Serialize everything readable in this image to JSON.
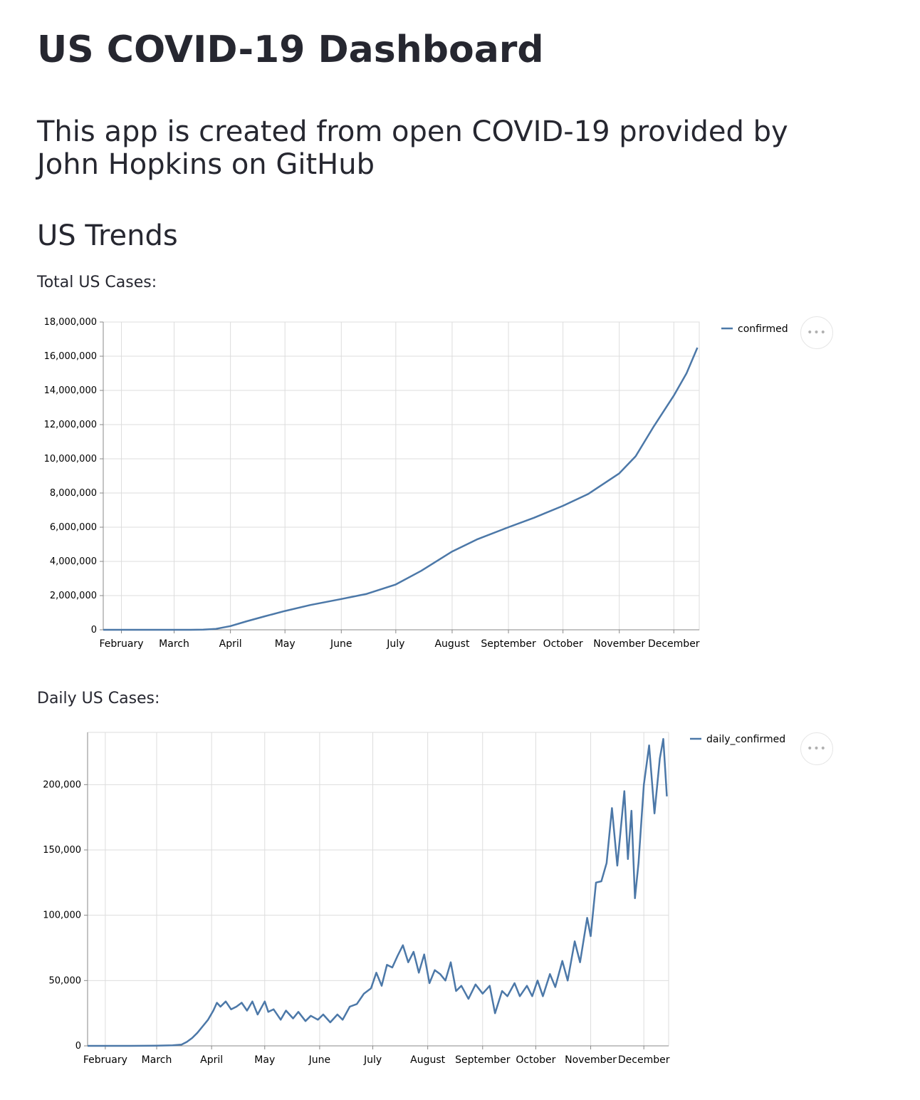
{
  "page": {
    "title": "US COVID-19 Dashboard",
    "subtitle": "This app is created from open COVID-19 provided by John Hopkins on GitHub",
    "section": "US Trends",
    "total_label": "Total US Cases:",
    "daily_label": "Daily US Cases:",
    "menu_icon": "ellipsis-icon"
  },
  "colors": {
    "line": "#4c78a8",
    "grid": "#dddddd",
    "text": "#262730"
  },
  "chart_data": [
    {
      "type": "line",
      "title": "",
      "legend": "top-right",
      "series": [
        {
          "name": "confirmed"
        }
      ],
      "x_tick_labels": [
        "February",
        "March",
        "April",
        "May",
        "June",
        "July",
        "August",
        "September",
        "October",
        "November",
        "December"
      ],
      "y_ticks": [
        0,
        2000000,
        4000000,
        6000000,
        8000000,
        10000000,
        12000000,
        14000000,
        16000000,
        18000000
      ],
      "y_tick_labels": [
        "0",
        "2,000,000",
        "4,000,000",
        "6,000,000",
        "8,000,000",
        "10,000,000",
        "12,000,000",
        "14,000,000",
        "16,000,000",
        "18,000,000"
      ],
      "ylim": [
        0,
        18000000
      ],
      "grid": true,
      "points": [
        [
          "2020-01-22",
          1
        ],
        [
          "2020-02-01",
          8
        ],
        [
          "2020-02-15",
          15
        ],
        [
          "2020-03-01",
          75
        ],
        [
          "2020-03-10",
          1000
        ],
        [
          "2020-03-17",
          6400
        ],
        [
          "2020-03-24",
          55000
        ],
        [
          "2020-04-01",
          215000
        ],
        [
          "2020-04-10",
          500000
        ],
        [
          "2020-04-20",
          790000
        ],
        [
          "2020-05-01",
          1100000
        ],
        [
          "2020-05-15",
          1450000
        ],
        [
          "2020-06-01",
          1800000
        ],
        [
          "2020-06-15",
          2100000
        ],
        [
          "2020-07-01",
          2650000
        ],
        [
          "2020-07-15",
          3450000
        ],
        [
          "2020-08-01",
          4580000
        ],
        [
          "2020-08-15",
          5300000
        ],
        [
          "2020-09-01",
          6000000
        ],
        [
          "2020-09-15",
          6550000
        ],
        [
          "2020-10-01",
          7250000
        ],
        [
          "2020-10-15",
          7950000
        ],
        [
          "2020-11-01",
          9150000
        ],
        [
          "2020-11-10",
          10150000
        ],
        [
          "2020-11-20",
          11900000
        ],
        [
          "2020-12-01",
          13700000
        ],
        [
          "2020-12-08",
          15000000
        ],
        [
          "2020-12-14",
          16500000
        ]
      ]
    },
    {
      "type": "line",
      "title": "",
      "legend": "top-right",
      "series": [
        {
          "name": "daily_confirmed"
        }
      ],
      "x_tick_labels": [
        "February",
        "March",
        "April",
        "May",
        "June",
        "July",
        "August",
        "September",
        "October",
        "November",
        "December"
      ],
      "y_ticks": [
        0,
        50000,
        100000,
        150000,
        200000
      ],
      "y_tick_labels": [
        "0",
        "50,000",
        "100,000",
        "150,000",
        "200,000"
      ],
      "ylim": [
        0,
        240000
      ],
      "grid": true,
      "points": [
        [
          "2020-01-22",
          0
        ],
        [
          "2020-02-15",
          0
        ],
        [
          "2020-03-01",
          100
        ],
        [
          "2020-03-10",
          400
        ],
        [
          "2020-03-15",
          1000
        ],
        [
          "2020-03-18",
          3000
        ],
        [
          "2020-03-21",
          6000
        ],
        [
          "2020-03-24",
          10000
        ],
        [
          "2020-03-27",
          15000
        ],
        [
          "2020-03-30",
          20000
        ],
        [
          "2020-04-02",
          27000
        ],
        [
          "2020-04-04",
          33000
        ],
        [
          "2020-04-06",
          30000
        ],
        [
          "2020-04-09",
          34000
        ],
        [
          "2020-04-12",
          28000
        ],
        [
          "2020-04-15",
          30000
        ],
        [
          "2020-04-18",
          33000
        ],
        [
          "2020-04-21",
          27000
        ],
        [
          "2020-04-24",
          34000
        ],
        [
          "2020-04-27",
          24000
        ],
        [
          "2020-05-01",
          34000
        ],
        [
          "2020-05-03",
          26000
        ],
        [
          "2020-05-06",
          28000
        ],
        [
          "2020-05-10",
          20000
        ],
        [
          "2020-05-13",
          27000
        ],
        [
          "2020-05-17",
          21000
        ],
        [
          "2020-05-20",
          26000
        ],
        [
          "2020-05-24",
          19000
        ],
        [
          "2020-05-27",
          23000
        ],
        [
          "2020-05-31",
          20000
        ],
        [
          "2020-06-03",
          24000
        ],
        [
          "2020-06-07",
          18000
        ],
        [
          "2020-06-11",
          24000
        ],
        [
          "2020-06-14",
          20000
        ],
        [
          "2020-06-18",
          30000
        ],
        [
          "2020-06-22",
          32000
        ],
        [
          "2020-06-26",
          40000
        ],
        [
          "2020-06-30",
          44000
        ],
        [
          "2020-07-03",
          56000
        ],
        [
          "2020-07-06",
          46000
        ],
        [
          "2020-07-09",
          62000
        ],
        [
          "2020-07-12",
          60000
        ],
        [
          "2020-07-15",
          69000
        ],
        [
          "2020-07-18",
          77000
        ],
        [
          "2020-07-21",
          64000
        ],
        [
          "2020-07-24",
          72000
        ],
        [
          "2020-07-27",
          56000
        ],
        [
          "2020-07-30",
          70000
        ],
        [
          "2020-08-02",
          48000
        ],
        [
          "2020-08-05",
          58000
        ],
        [
          "2020-08-08",
          55000
        ],
        [
          "2020-08-11",
          50000
        ],
        [
          "2020-08-14",
          64000
        ],
        [
          "2020-08-17",
          42000
        ],
        [
          "2020-08-20",
          46000
        ],
        [
          "2020-08-24",
          36000
        ],
        [
          "2020-08-28",
          47000
        ],
        [
          "2020-09-01",
          40000
        ],
        [
          "2020-09-05",
          46000
        ],
        [
          "2020-09-08",
          25000
        ],
        [
          "2020-09-12",
          42000
        ],
        [
          "2020-09-15",
          38000
        ],
        [
          "2020-09-19",
          48000
        ],
        [
          "2020-09-22",
          38000
        ],
        [
          "2020-09-26",
          46000
        ],
        [
          "2020-09-29",
          38000
        ],
        [
          "2020-10-02",
          50000
        ],
        [
          "2020-10-05",
          38000
        ],
        [
          "2020-10-09",
          55000
        ],
        [
          "2020-10-12",
          45000
        ],
        [
          "2020-10-16",
          65000
        ],
        [
          "2020-10-19",
          50000
        ],
        [
          "2020-10-23",
          80000
        ],
        [
          "2020-10-26",
          64000
        ],
        [
          "2020-10-30",
          98000
        ],
        [
          "2020-11-01",
          84000
        ],
        [
          "2020-11-04",
          125000
        ],
        [
          "2020-11-07",
          126000
        ],
        [
          "2020-11-10",
          140000
        ],
        [
          "2020-11-13",
          182000
        ],
        [
          "2020-11-16",
          138000
        ],
        [
          "2020-11-20",
          195000
        ],
        [
          "2020-11-22",
          143000
        ],
        [
          "2020-11-24",
          180000
        ],
        [
          "2020-11-26",
          113000
        ],
        [
          "2020-11-28",
          140000
        ],
        [
          "2020-12-01",
          200000
        ],
        [
          "2020-12-04",
          230000
        ],
        [
          "2020-12-07",
          178000
        ],
        [
          "2020-12-10",
          220000
        ],
        [
          "2020-12-12",
          235000
        ],
        [
          "2020-12-14",
          191000
        ]
      ]
    }
  ]
}
